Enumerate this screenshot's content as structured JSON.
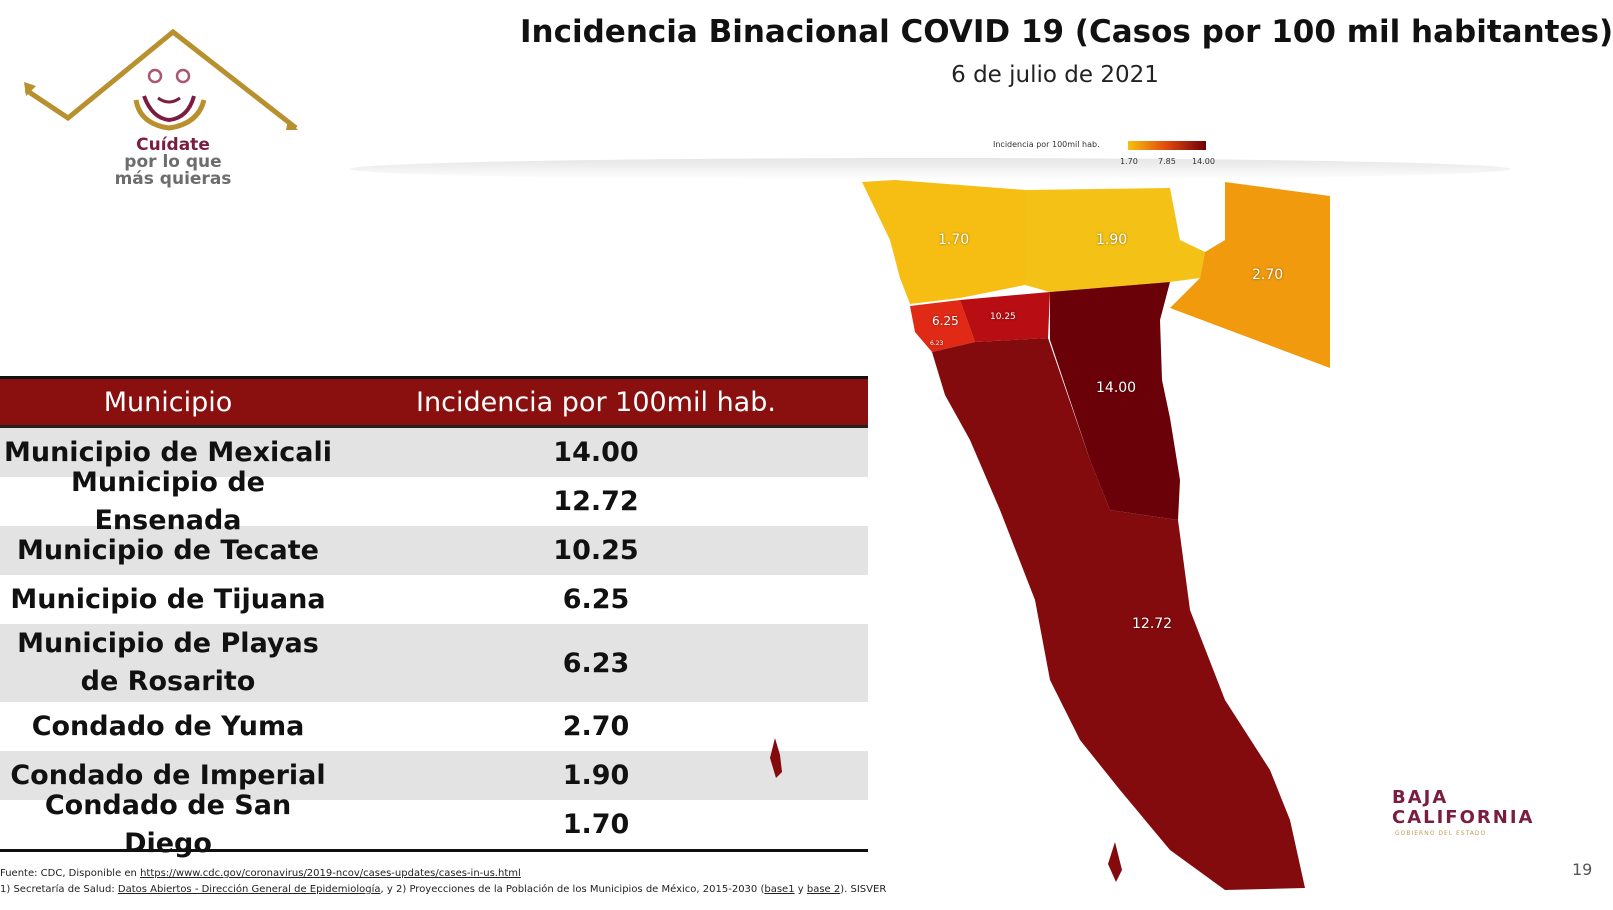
{
  "header": {
    "title": "Incidencia Binacional COVID 19 (Casos por 100 mil habitantes)",
    "date": "6 de julio de 2021"
  },
  "logo": {
    "line1": "Cuídate",
    "line2": "por lo que",
    "line3": "más quieras",
    "brand_color": "#7b1d40",
    "accent_color": "#b8902e"
  },
  "table": {
    "columns": [
      "Municipio",
      "Incidencia por 100mil hab."
    ],
    "rows": [
      {
        "name": "Municipio de Mexicali",
        "value": "14.00"
      },
      {
        "name": "Municipio de Ensenada",
        "value": "12.72"
      },
      {
        "name": "Municipio de Tecate",
        "value": "10.25"
      },
      {
        "name": "Municipio de Tijuana",
        "value": "6.25"
      },
      {
        "name": "Municipio de Playas de Rosarito",
        "value": "6.23"
      },
      {
        "name": "Condado de Yuma",
        "value": "2.70"
      },
      {
        "name": "Condado de Imperial",
        "value": "1.90"
      },
      {
        "name": "Condado de San Diego",
        "value": "1.70"
      }
    ],
    "header_color": "#8a1010"
  },
  "legend": {
    "title": "Incidencia por 100mil hab.",
    "ticks": [
      "1.70",
      "7.85",
      "14.00"
    ],
    "colors": [
      "#f6c10d",
      "#e0480e",
      "#6e0009"
    ]
  },
  "map": {
    "labels": {
      "san_diego": "1.70",
      "imperial": "1.90",
      "yuma": "2.70",
      "tijuana": "6.25",
      "rosarito": "6.23",
      "tecate": "10.25",
      "mexicali": "14.00",
      "ensenada": "12.72"
    },
    "colors": {
      "san_diego": "#f6be12",
      "imperial": "#f4c116",
      "yuma": "#f19a0d",
      "tijuana": "#e02a16",
      "tecate": "#b80d12",
      "mexicali": "#6a0008",
      "ensenada": "#830a0d"
    }
  },
  "source": {
    "line1_prefix": "Fuente: CDC, Disponible en ",
    "line1_link": "https://www.cdc.gov/coronavirus/2019-ncov/cases-updates/cases-in-us.html",
    "line2_prefix": "1) Secretaría de Salud: ",
    "line2_link": "Datos Abiertos - Dirección General de Epidemiología",
    "line2_suffix": ", y 2) Proyecciones de la Población de los Municipios de México, 2015-2030 (",
    "line2_link2": "base1",
    "line2_mid": " y ",
    "line2_link3": "base 2",
    "line2_end": "). SISVER"
  },
  "brand": {
    "line1": "BAJA",
    "line2": "CALIFORNIA",
    "sub": "GOBIERNO DEL ESTADO"
  },
  "page_number": "19"
}
